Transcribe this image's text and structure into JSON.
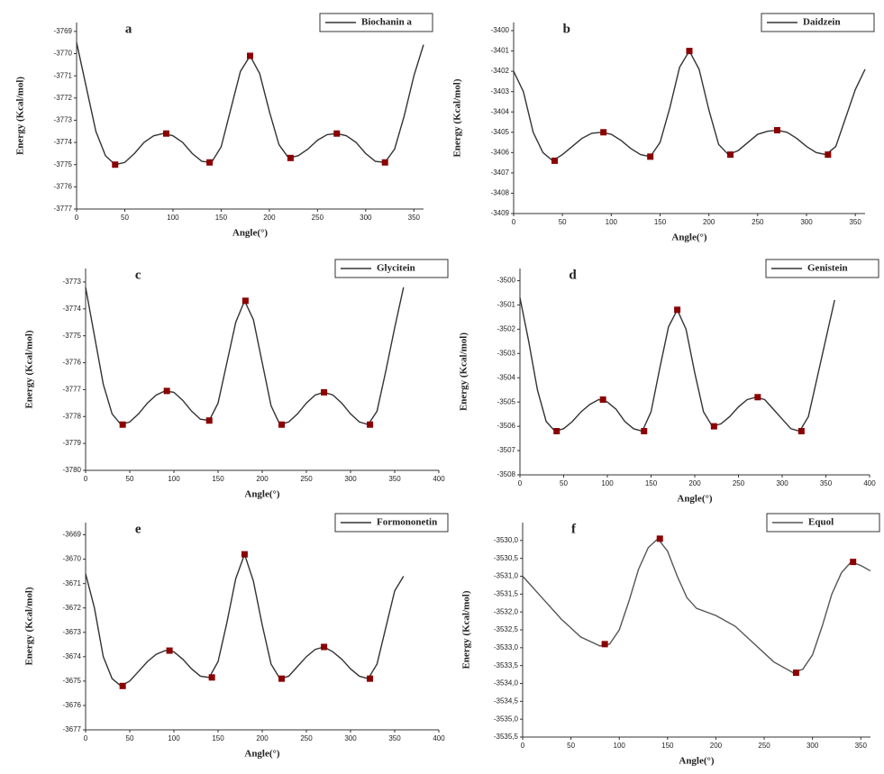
{
  "chart_data": [
    {
      "type": "line",
      "label": "a",
      "x_label": "Angle(°)",
      "y_label": "Energy (Kcal/mol)",
      "legend": "upper right",
      "x": [
        0,
        10,
        20,
        30,
        40,
        50,
        60,
        70,
        80,
        90,
        100,
        110,
        120,
        130,
        140,
        150,
        160,
        170,
        180,
        190,
        200,
        210,
        220,
        230,
        240,
        250,
        260,
        270,
        280,
        290,
        300,
        310,
        320,
        330,
        340,
        350,
        360
      ],
      "series": [
        {
          "name": "Biochanin a",
          "color": "#333333",
          "values": [
            -3769.5,
            -3771.5,
            -3773.5,
            -3774.6,
            -3775.0,
            -3774.9,
            -3774.5,
            -3774.0,
            -3773.7,
            -3773.6,
            -3773.7,
            -3774.0,
            -3774.5,
            -3774.85,
            -3774.9,
            -3774.2,
            -3772.5,
            -3770.8,
            -3770.1,
            -3770.9,
            -3772.6,
            -3774.1,
            -3774.7,
            -3774.6,
            -3774.3,
            -3773.9,
            -3773.65,
            -3773.6,
            -3773.7,
            -3774.0,
            -3774.5,
            -3774.85,
            -3774.9,
            -3774.3,
            -3772.8,
            -3771.0,
            -3769.6
          ]
        }
      ],
      "points": {
        "color": "#8b0000",
        "x": [
          40,
          93,
          138,
          180,
          222,
          270,
          320
        ],
        "y": [
          -3775.0,
          -3773.6,
          -3774.9,
          -3770.1,
          -3774.7,
          -3773.6,
          -3774.9
        ]
      },
      "xlim": [
        0,
        360
      ],
      "xticks": [
        0,
        50,
        100,
        150,
        200,
        250,
        300,
        350
      ],
      "ylim": [
        -3777,
        -3768.6
      ],
      "yticks": [
        -3777,
        -3776,
        -3775,
        -3774,
        -3773,
        -3772,
        -3771,
        -3770,
        -3769
      ]
    },
    {
      "type": "line",
      "label": "b",
      "x_label": "Angle(°)",
      "y_label": "Energy (Kcal/mol)",
      "legend": "upper right",
      "x": [
        0,
        10,
        20,
        30,
        40,
        50,
        60,
        70,
        80,
        90,
        100,
        110,
        120,
        130,
        140,
        150,
        160,
        170,
        180,
        190,
        200,
        210,
        220,
        230,
        240,
        250,
        260,
        270,
        280,
        290,
        300,
        310,
        320,
        330,
        340,
        350,
        360
      ],
      "series": [
        {
          "name": "Daidzein",
          "color": "#333333",
          "values": [
            -3402,
            -3403,
            -3405,
            -3406,
            -3406.4,
            -3406.1,
            -3405.7,
            -3405.3,
            -3405.05,
            -3405.0,
            -3405.1,
            -3405.4,
            -3405.8,
            -3406.1,
            -3406.2,
            -3405.5,
            -3403.8,
            -3401.8,
            -3401.0,
            -3401.9,
            -3403.9,
            -3405.6,
            -3406.1,
            -3405.9,
            -3405.5,
            -3405.1,
            -3404.95,
            -3404.9,
            -3405.0,
            -3405.3,
            -3405.7,
            -3406.0,
            -3406.1,
            -3405.7,
            -3404.3,
            -3402.9,
            -3401.9
          ]
        }
      ],
      "points": {
        "color": "#8b0000",
        "x": [
          42,
          92,
          140,
          180,
          222,
          270,
          322
        ],
        "y": [
          -3406.4,
          -3405.0,
          -3406.2,
          -3401.0,
          -3406.1,
          -3404.9,
          -3406.1
        ]
      },
      "xlim": [
        0,
        360
      ],
      "xticks": [
        0,
        50,
        100,
        150,
        200,
        250,
        300,
        350
      ],
      "ylim": [
        -3409,
        -3399.6
      ],
      "yticks": [
        -3409,
        -3408,
        -3407,
        -3406,
        -3405,
        -3404,
        -3403,
        -3402,
        -3401,
        -3400
      ]
    },
    {
      "type": "line",
      "label": "c",
      "x_label": "Angle(°)",
      "y_label": "Energy (Kcal/mol)",
      "legend": "upper right",
      "x": [
        0,
        10,
        20,
        30,
        40,
        50,
        60,
        70,
        80,
        90,
        100,
        110,
        120,
        130,
        140,
        150,
        160,
        170,
        180,
        190,
        200,
        210,
        220,
        230,
        240,
        250,
        260,
        270,
        280,
        290,
        300,
        310,
        320,
        330,
        340,
        350,
        360
      ],
      "series": [
        {
          "name": "Glycitein",
          "color": "#333333",
          "values": [
            -3773.2,
            -3775,
            -3776.8,
            -3777.9,
            -3778.3,
            -3778.2,
            -3777.9,
            -3777.5,
            -3777.2,
            -3777.05,
            -3777.1,
            -3777.4,
            -3777.8,
            -3778.1,
            -3778.15,
            -3777.5,
            -3776.0,
            -3774.5,
            -3773.7,
            -3774.4,
            -3776.0,
            -3777.6,
            -3778.3,
            -3778.2,
            -3777.9,
            -3777.5,
            -3777.2,
            -3777.1,
            -3777.2,
            -3777.5,
            -3777.9,
            -3778.2,
            -3778.3,
            -3777.8,
            -3776.3,
            -3774.7,
            -3773.2
          ]
        }
      ],
      "points": {
        "color": "#8b0000",
        "x": [
          42,
          92,
          140,
          181,
          222,
          270,
          322
        ],
        "y": [
          -3778.3,
          -3777.05,
          -3778.15,
          -3773.7,
          -3778.3,
          -3777.1,
          -3778.3
        ]
      },
      "xlim": [
        0,
        400
      ],
      "xticks": [
        0,
        50,
        100,
        150,
        200,
        250,
        300,
        350,
        400
      ],
      "ylim": [
        -3780,
        -3772.5
      ],
      "yticks": [
        -3780,
        -3779,
        -3778,
        -3777,
        -3776,
        -3775,
        -3774,
        -3773
      ]
    },
    {
      "type": "line",
      "label": "d",
      "x_label": "Angle(°)",
      "y_label": "Energy (Kcal/mol)",
      "legend": "upper right",
      "x": [
        0,
        10,
        20,
        30,
        40,
        50,
        60,
        70,
        80,
        90,
        100,
        110,
        120,
        130,
        140,
        150,
        160,
        170,
        180,
        190,
        200,
        210,
        220,
        230,
        240,
        250,
        260,
        270,
        280,
        290,
        300,
        310,
        320,
        330,
        340,
        350,
        360
      ],
      "series": [
        {
          "name": "Genistein",
          "color": "#333333",
          "values": [
            -3500.7,
            -3502.5,
            -3504.5,
            -3505.8,
            -3506.2,
            -3506.1,
            -3505.8,
            -3505.4,
            -3505.1,
            -3504.9,
            -3505.0,
            -3505.3,
            -3505.8,
            -3506.1,
            -3506.2,
            -3505.4,
            -3503.6,
            -3501.9,
            -3501.2,
            -3502.0,
            -3503.8,
            -3505.4,
            -3506.0,
            -3505.9,
            -3505.6,
            -3505.2,
            -3504.9,
            -3504.8,
            -3504.9,
            -3505.3,
            -3505.7,
            -3506.1,
            -3506.2,
            -3505.6,
            -3504.0,
            -3502.4,
            -3500.8
          ]
        }
      ],
      "points": {
        "color": "#8b0000",
        "x": [
          42,
          95,
          142,
          180,
          222,
          272,
          322
        ],
        "y": [
          -3506.2,
          -3504.9,
          -3506.2,
          -3501.2,
          -3506.0,
          -3504.8,
          -3506.2
        ]
      },
      "xlim": [
        0,
        400
      ],
      "xticks": [
        0,
        50,
        100,
        150,
        200,
        250,
        300,
        350,
        400
      ],
      "ylim": [
        -3508,
        -3499.5
      ],
      "yticks": [
        -3508,
        -3507,
        -3506,
        -3505,
        -3504,
        -3503,
        -3502,
        -3501,
        -3500
      ]
    },
    {
      "type": "line",
      "label": "e",
      "x_label": "Angle(°)",
      "y_label": "Energy (Kcal/mol)",
      "legend": "upper right",
      "x": [
        0,
        10,
        20,
        30,
        40,
        50,
        60,
        70,
        80,
        90,
        100,
        110,
        120,
        130,
        140,
        150,
        160,
        170,
        180,
        190,
        200,
        210,
        220,
        230,
        240,
        250,
        260,
        270,
        280,
        290,
        300,
        310,
        320,
        330,
        340,
        350,
        360
      ],
      "series": [
        {
          "name": "Formononetin",
          "color": "#333333",
          "values": [
            -3670.6,
            -3672,
            -3674,
            -3674.9,
            -3675.2,
            -3675.0,
            -3674.6,
            -3674.2,
            -3673.9,
            -3673.75,
            -3673.8,
            -3674.1,
            -3674.5,
            -3674.8,
            -3674.85,
            -3674.2,
            -3672.6,
            -3670.8,
            -3669.8,
            -3670.9,
            -3672.7,
            -3674.3,
            -3674.9,
            -3674.8,
            -3674.4,
            -3674.0,
            -3673.7,
            -3673.6,
            -3673.8,
            -3674.1,
            -3674.5,
            -3674.8,
            -3674.9,
            -3674.3,
            -3672.8,
            -3671.3,
            -3670.7
          ]
        }
      ],
      "points": {
        "color": "#8b0000",
        "x": [
          42,
          95,
          143,
          180,
          222,
          270,
          322
        ],
        "y": [
          -3675.2,
          -3673.75,
          -3674.85,
          -3669.8,
          -3674.9,
          -3673.6,
          -3674.9
        ]
      },
      "xlim": [
        0,
        400
      ],
      "xticks": [
        0,
        50,
        100,
        150,
        200,
        250,
        300,
        350,
        400
      ],
      "ylim": [
        -3677,
        -3668.5
      ],
      "yticks": [
        -3677,
        -3676,
        -3675,
        -3674,
        -3673,
        -3672,
        -3671,
        -3670,
        -3669
      ]
    },
    {
      "type": "line",
      "label": "f",
      "x_label": "Angle(°)",
      "y_label": "Energy (Kcal/mol)",
      "legend": "upper right",
      "x": [
        0,
        20,
        40,
        60,
        80,
        90,
        100,
        110,
        120,
        130,
        140,
        150,
        160,
        170,
        180,
        200,
        220,
        240,
        260,
        280,
        290,
        300,
        310,
        320,
        330,
        340,
        350,
        360
      ],
      "series": [
        {
          "name": "Equol",
          "color": "#555555",
          "values": [
            -3531.0,
            -3531.6,
            -3532.2,
            -3532.7,
            -3532.95,
            -3532.9,
            -3532.5,
            -3531.7,
            -3530.8,
            -3530.2,
            -3529.95,
            -3530.3,
            -3531.0,
            -3531.6,
            -3531.9,
            -3532.1,
            -3532.4,
            -3532.9,
            -3533.4,
            -3533.7,
            -3533.6,
            -3533.2,
            -3532.4,
            -3531.5,
            -3530.9,
            -3530.6,
            -3530.7,
            -3530.85
          ]
        }
      ],
      "points": {
        "color": "#8b0000",
        "x": [
          85,
          142,
          283,
          342
        ],
        "y": [
          -3532.9,
          -3529.95,
          -3533.7,
          -3530.6
        ]
      },
      "xlim": [
        0,
        360
      ],
      "xticks": [
        0,
        50,
        100,
        150,
        200,
        250,
        300,
        350
      ],
      "ylim": [
        -3535.5,
        -3529.5
      ],
      "yticks": [
        {
          "value": -3535.5,
          "label": "-3535,5"
        },
        {
          "value": -3535.0,
          "label": "-3535,0"
        },
        {
          "value": -3534.5,
          "label": "-3534,5"
        },
        {
          "value": -3534.0,
          "label": "-3534,0"
        },
        {
          "value": -3533.5,
          "label": "-3533,5"
        },
        {
          "value": -3533.0,
          "label": "-3533,0"
        },
        {
          "value": -3532.5,
          "label": "-3532,5"
        },
        {
          "value": -3532.0,
          "label": "-3532,0"
        },
        {
          "value": -3531.5,
          "label": "-3531,5"
        },
        {
          "value": -3531.0,
          "label": "-3531,0"
        },
        {
          "value": -3530.5,
          "label": "-3530,5"
        },
        {
          "value": -3530.0,
          "label": "-3530,0"
        }
      ]
    }
  ]
}
